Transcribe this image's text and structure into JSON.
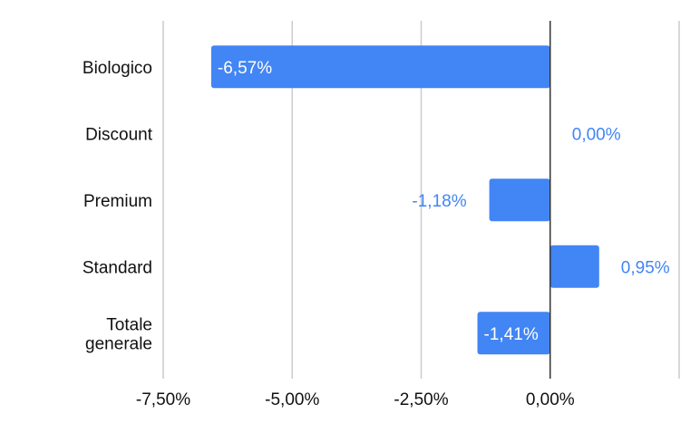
{
  "chart_data": {
    "type": "bar",
    "orientation": "horizontal",
    "categories": [
      "Biologico",
      "Discount",
      "Premium",
      "Standard",
      "Totale\ngenerale"
    ],
    "values": [
      -6.57,
      0.0,
      -1.18,
      0.95,
      -1.41
    ],
    "value_labels": [
      "-6,57%",
      "0,00%",
      "-1,18%",
      "0,95%",
      "-1,41%"
    ],
    "xlim": [
      -7.5,
      2.5
    ],
    "x_ticks": [
      -7.5,
      -5.0,
      -2.5,
      0.0
    ],
    "x_tick_labels": [
      "-7,50%",
      "-5,00%",
      "-2,50%",
      "0,00%"
    ],
    "grid": true,
    "legend": "none",
    "title": "",
    "xlabel": "",
    "ylabel": "",
    "colors": {
      "bar": "#4285F4",
      "gridline": "#cccccc",
      "zero_line": "#333333",
      "label_outside": "#4285F4",
      "label_inside": "#ffffff",
      "text": "#111111"
    }
  }
}
